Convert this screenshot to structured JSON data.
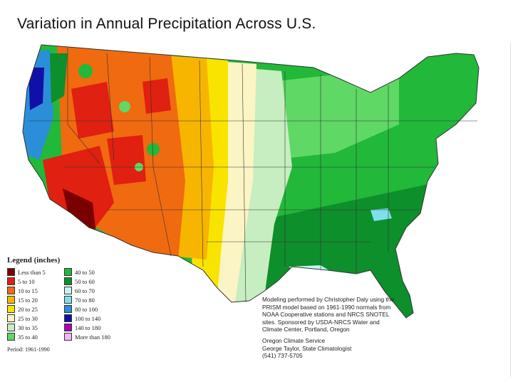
{
  "title": "Variation in Annual Precipitation Across U.S.",
  "legend": {
    "title": "Legend (inches)",
    "items": [
      {
        "label": "Less than 5",
        "color": "#7a0000"
      },
      {
        "label": "5 to 10",
        "color": "#e02010"
      },
      {
        "label": "10 to 15",
        "color": "#f06a10"
      },
      {
        "label": "15 to 20",
        "color": "#f7b500"
      },
      {
        "label": "20 to 25",
        "color": "#f9e400"
      },
      {
        "label": "25 to 30",
        "color": "#fbf4c4"
      },
      {
        "label": "30 to 35",
        "color": "#c6eec0"
      },
      {
        "label": "35 to 40",
        "color": "#5fd865"
      },
      {
        "label": "40 to 50",
        "color": "#22b83a"
      },
      {
        "label": "50 to 60",
        "color": "#0d8f2b"
      },
      {
        "label": "60 to 70",
        "color": "#c9f3f3"
      },
      {
        "label": "70 to 80",
        "color": "#7fe0ea"
      },
      {
        "label": "80 to 100",
        "color": "#2a8fd8"
      },
      {
        "label": "100 to 140",
        "color": "#1010a8"
      },
      {
        "label": "140 to 180",
        "color": "#b000b8"
      },
      {
        "label": "More than 180",
        "color": "#f0b8f0"
      }
    ],
    "period": "Period: 1961-1990"
  },
  "credits": {
    "text1": "Modeling performed by Christopher Daly using the PRISM model based on 1961-1990 normals from NOAA Cooperative stations and NRCS SNOTEL sites. Sponsored by USDA-NRCS Water and Climate Center, Portland, Oregon",
    "org": "Oregon Climate Service",
    "person": "George Taylor, State Climatologist",
    "phone": "(541) 737-5705"
  }
}
